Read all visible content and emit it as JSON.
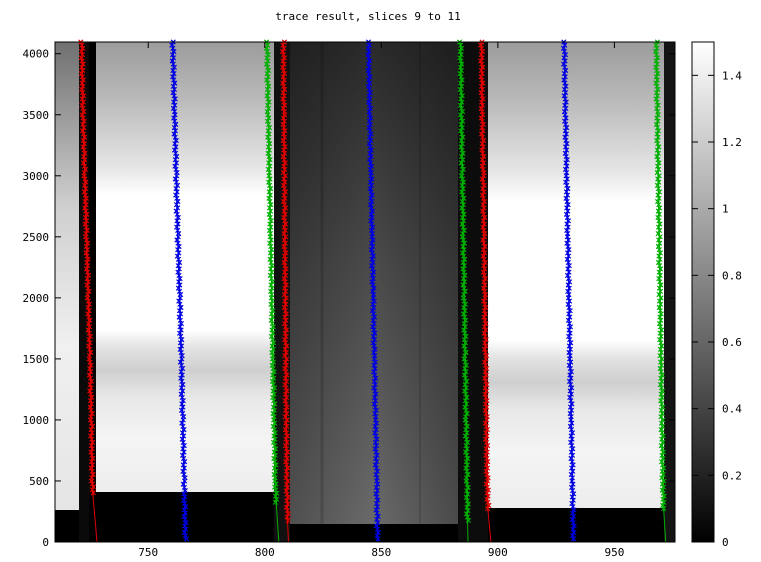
{
  "chart_data": {
    "type": "heatmap",
    "title": "trace result, slices 9 to 11",
    "xlabel": "",
    "ylabel": "",
    "xlim": [
      710,
      976
    ],
    "ylim": [
      0,
      4096
    ],
    "x_ticks": [
      "750",
      "800",
      "850",
      "900",
      "950"
    ],
    "y_ticks": [
      "0",
      "500",
      "1000",
      "1500",
      "2000",
      "2500",
      "3000",
      "3500",
      "4000"
    ],
    "grid": false,
    "colorbar": {
      "range": [
        0,
        1.5
      ],
      "ticks": [
        "0",
        "0.2",
        "0.4",
        "0.6",
        "0.8",
        "1",
        "1.2",
        "1.4"
      ],
      "colormap": "gray"
    },
    "series": [
      {
        "color": "#e00000",
        "marker": "x",
        "points": [
          [
            721.5,
            4096
          ],
          [
            722,
            3500
          ],
          [
            722.8,
            3000
          ],
          [
            723.5,
            2500
          ],
          [
            724.3,
            2000
          ],
          [
            725,
            1500
          ],
          [
            725.6,
            1000
          ],
          [
            726,
            500
          ],
          [
            726.3,
            380
          ]
        ],
        "tail": [
          [
            726.3,
            380
          ],
          [
            728,
            0
          ]
        ]
      },
      {
        "color": "#0000e0",
        "marker": "x",
        "points": [
          [
            760.5,
            4096
          ],
          [
            761.3,
            3500
          ],
          [
            762,
            3000
          ],
          [
            762.7,
            2500
          ],
          [
            763.5,
            2000
          ],
          [
            764.2,
            1500
          ],
          [
            764.8,
            1000
          ],
          [
            765.4,
            500
          ],
          [
            766,
            0
          ]
        ],
        "tail": []
      },
      {
        "color": "#00b000",
        "marker": "x",
        "points": [
          [
            801,
            4096
          ],
          [
            801.5,
            3500
          ],
          [
            802,
            3000
          ],
          [
            802.5,
            2500
          ],
          [
            803,
            2000
          ],
          [
            803.5,
            1500
          ],
          [
            804,
            1000
          ],
          [
            804.5,
            500
          ],
          [
            805,
            300
          ]
        ],
        "tail": [
          [
            805,
            300
          ],
          [
            806,
            0
          ]
        ]
      },
      {
        "color": "#e00000",
        "marker": "x",
        "points": [
          [
            808,
            4096
          ],
          [
            808.2,
            3500
          ],
          [
            808.4,
            3000
          ],
          [
            808.6,
            2500
          ],
          [
            808.8,
            2000
          ],
          [
            809,
            1500
          ],
          [
            809.2,
            1000
          ],
          [
            809.5,
            500
          ],
          [
            809.8,
            150
          ]
        ],
        "tail": [
          [
            809.8,
            150
          ],
          [
            810.2,
            0
          ]
        ]
      },
      {
        "color": "#0000e0",
        "marker": "x",
        "points": [
          [
            844.5,
            4096
          ],
          [
            845,
            3500
          ],
          [
            845.5,
            3000
          ],
          [
            846,
            2500
          ],
          [
            846.5,
            2000
          ],
          [
            847,
            1500
          ],
          [
            847.5,
            1000
          ],
          [
            848,
            500
          ],
          [
            848.4,
            0
          ]
        ],
        "tail": []
      },
      {
        "color": "#00b000",
        "marker": "x",
        "points": [
          [
            884,
            4096
          ],
          [
            884.4,
            3500
          ],
          [
            884.8,
            3000
          ],
          [
            885.2,
            2500
          ],
          [
            885.6,
            2000
          ],
          [
            886,
            1500
          ],
          [
            886.4,
            1000
          ],
          [
            886.8,
            500
          ],
          [
            887,
            150
          ]
        ],
        "tail": [
          [
            887,
            150
          ],
          [
            887.2,
            0
          ]
        ]
      },
      {
        "color": "#e00000",
        "marker": "x",
        "points": [
          [
            893,
            4096
          ],
          [
            893.3,
            3500
          ],
          [
            893.7,
            3000
          ],
          [
            894,
            2500
          ],
          [
            894.3,
            2000
          ],
          [
            894.7,
            1500
          ],
          [
            895,
            1000
          ],
          [
            895.4,
            500
          ],
          [
            895.8,
            250
          ]
        ],
        "tail": [
          [
            895.8,
            250
          ],
          [
            897,
            0
          ]
        ]
      },
      {
        "color": "#0000e0",
        "marker": "x",
        "points": [
          [
            928.5,
            4096
          ],
          [
            929,
            3500
          ],
          [
            929.5,
            3000
          ],
          [
            930,
            2500
          ],
          [
            930.5,
            2000
          ],
          [
            931,
            1500
          ],
          [
            931.5,
            1000
          ],
          [
            932,
            500
          ],
          [
            932.5,
            0
          ]
        ],
        "tail": []
      },
      {
        "color": "#00b000",
        "marker": "x",
        "points": [
          [
            968,
            4096
          ],
          [
            968.4,
            3500
          ],
          [
            968.8,
            3000
          ],
          [
            969.2,
            2500
          ],
          [
            969.6,
            2000
          ],
          [
            970,
            1500
          ],
          [
            970.4,
            1000
          ],
          [
            970.8,
            500
          ],
          [
            971.2,
            250
          ]
        ],
        "tail": [
          [
            971.2,
            250
          ],
          [
            972,
            0
          ]
        ]
      }
    ]
  }
}
